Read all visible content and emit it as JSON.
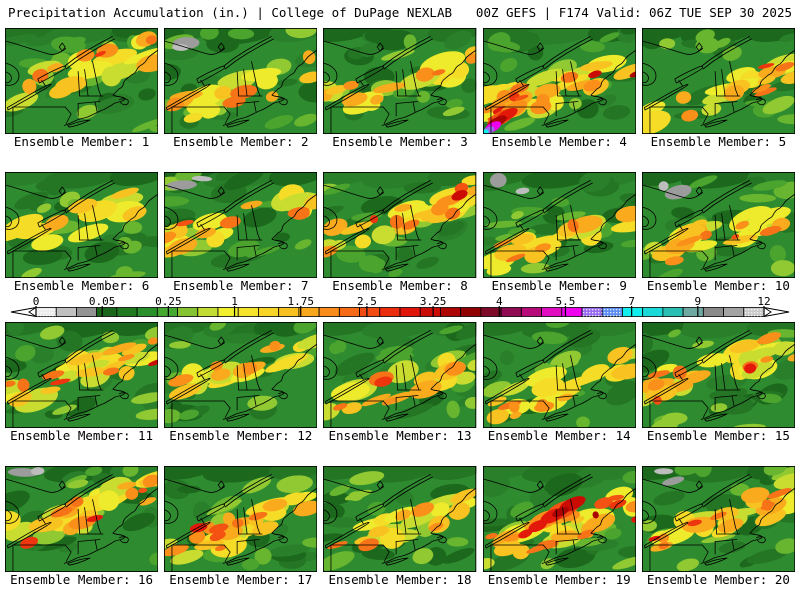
{
  "header": {
    "left": "Precipitation Accumulation (in.) | College of DuPage NEXLAB",
    "right": "00Z GEFS | F174 Valid: 06Z TUE SEP 30 2025"
  },
  "colorbar": {
    "units": "in.",
    "ticks": [
      "0",
      "0.05",
      "0.25",
      "1",
      "1.75",
      "2.5",
      "3.25",
      "4",
      "5.5",
      "7",
      "9",
      "12"
    ],
    "segments": [
      "#ececec",
      "#c0c0c0",
      "#939393",
      "#1a661a",
      "#207a20",
      "#2b8f2b",
      "#45a830",
      "#85c332",
      "#c4dd32",
      "#f2ef2e",
      "#f5e42a",
      "#f7d426",
      "#f8c120",
      "#f9a81d",
      "#fa8c1a",
      "#f76b16",
      "#f34b12",
      "#ec2c0e",
      "#e01509",
      "#c90b04",
      "#ad0502",
      "#900101",
      "#7c0a28",
      "#8f0a52",
      "#b50a78",
      "#e00ec0",
      "#ee00ee",
      "#9a6cf0",
      "#5d8ff2",
      "#12eeee",
      "#1cd9d9",
      "#2abfb2",
      "#6da8a2",
      "#8a8a8a",
      "#a3a3a3",
      "#c9c9c9"
    ],
    "speckled_segments": [
      0,
      27,
      28,
      35
    ]
  },
  "map_palette": {
    "background": "#2f8b2f",
    "dark_green": [
      "#1c681c",
      "#247524",
      "#2a7f2a"
    ],
    "light_green": [
      "#4ba42e",
      "#68b52f",
      "#90c931"
    ],
    "yellow": [
      "#c9dd30",
      "#eeea2c",
      "#f5dd27"
    ],
    "gold": [
      "#f8c321",
      "#f9ab1d"
    ],
    "orange": [
      "#fa8f1a",
      "#f77317"
    ],
    "orange_red": [
      "#f35212",
      "#ee360e"
    ],
    "red": [
      "#e2190a",
      "#cb0c04"
    ],
    "dark_red": [
      "#ab0402",
      "#8f0101"
    ],
    "magenta": "#ee00ee",
    "purple": "#9a6cf0",
    "cyan": "#12eeee",
    "trace_gray": [
      "#9c9c9c",
      "#bdbdbd"
    ],
    "boundary": "#000000"
  },
  "members": [
    {
      "id": 1,
      "label": "Ensemble Member: 1",
      "intensity": 0.55
    },
    {
      "id": 2,
      "label": "Ensemble Member: 2",
      "intensity": 0.5,
      "gray": true
    },
    {
      "id": 3,
      "label": "Ensemble Member: 3",
      "intensity": 0.45
    },
    {
      "id": 4,
      "label": "Ensemble Member: 4",
      "intensity": 0.95,
      "extreme": "sw"
    },
    {
      "id": 5,
      "label": "Ensemble Member: 5",
      "intensity": 0.55
    },
    {
      "id": 6,
      "label": "Ensemble Member: 6",
      "intensity": 0.3
    },
    {
      "id": 7,
      "label": "Ensemble Member: 7",
      "intensity": 0.55,
      "gray": true
    },
    {
      "id": 8,
      "label": "Ensemble Member: 8",
      "intensity": 0.75
    },
    {
      "id": 9,
      "label": "Ensemble Member: 9",
      "intensity": 0.5,
      "gray": true
    },
    {
      "id": 10,
      "label": "Ensemble Member: 10",
      "intensity": 0.65,
      "gray": true
    },
    {
      "id": 11,
      "label": "Ensemble Member: 11",
      "intensity": 0.7
    },
    {
      "id": 12,
      "label": "Ensemble Member: 12",
      "intensity": 0.5
    },
    {
      "id": 13,
      "label": "Ensemble Member: 13",
      "intensity": 0.55
    },
    {
      "id": 14,
      "label": "Ensemble Member: 14",
      "intensity": 0.5
    },
    {
      "id": 15,
      "label": "Ensemble Member: 15",
      "intensity": 0.7
    },
    {
      "id": 16,
      "label": "Ensemble Member: 16",
      "intensity": 0.75,
      "gray": true
    },
    {
      "id": 17,
      "label": "Ensemble Member: 17",
      "intensity": 0.75
    },
    {
      "id": 18,
      "label": "Ensemble Member: 18",
      "intensity": 0.5
    },
    {
      "id": 19,
      "label": "Ensemble Member: 19",
      "intensity": 0.9,
      "extreme": "center"
    },
    {
      "id": 20,
      "label": "Ensemble Member: 20",
      "intensity": 0.7,
      "gray": true
    }
  ]
}
